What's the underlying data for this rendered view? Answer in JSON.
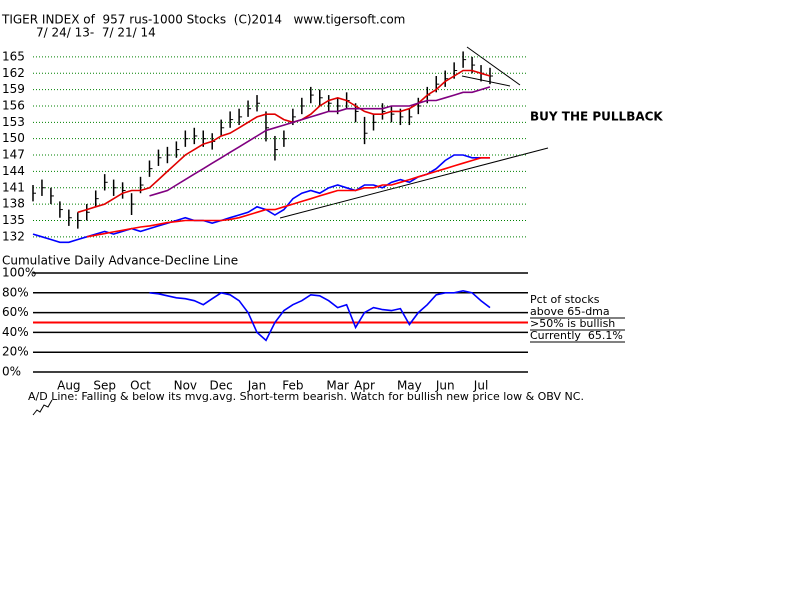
{
  "chart_data": [
    {
      "type": "ohlc",
      "title": "TIGER INDEX of  957 rus-1000 Stocks  (C)2014   www.tigersoft.com",
      "subtitle": "7/ 24/ 13-  7/ 21/ 14",
      "annotation": "BUY THE PULLBACK",
      "ylim": [
        130.5,
        167
      ],
      "yticks": [
        165,
        162,
        159,
        156,
        153,
        150,
        147,
        144,
        141,
        138,
        135,
        132
      ],
      "grid": true,
      "grid_color": "#008000",
      "bar_color": "#000000",
      "close": [
        140,
        141,
        139.5,
        137,
        135.5,
        135,
        136.5,
        139,
        142,
        141,
        140.5,
        138,
        141.5,
        144.5,
        146.5,
        147,
        148,
        150,
        150.5,
        150,
        149.5,
        152,
        153.5,
        154,
        155.5,
        156.5,
        152,
        148,
        150,
        154,
        156,
        158,
        157.5,
        156.5,
        156,
        157,
        155,
        151,
        153,
        155,
        154.5,
        154,
        154,
        156,
        158,
        160,
        161,
        162.5,
        164.5,
        163.5,
        162,
        161.5
      ],
      "high": [
        141.5,
        142.5,
        141,
        138.5,
        137,
        136.5,
        138,
        140.5,
        143.5,
        142.5,
        142,
        140,
        143,
        146,
        148,
        148.5,
        149.5,
        151.5,
        152,
        151.5,
        151,
        153.5,
        155,
        155.5,
        157,
        158,
        155,
        150.5,
        151.5,
        155.5,
        157.5,
        159.5,
        159,
        158,
        157.5,
        158.5,
        156.5,
        154,
        154.5,
        156.5,
        156,
        155.5,
        155.5,
        157.5,
        159.5,
        161.5,
        162.5,
        164,
        166,
        165,
        163.5,
        163
      ],
      "low": [
        138.5,
        139.5,
        138,
        135.5,
        134,
        133.5,
        135,
        137.5,
        140.5,
        139.5,
        139,
        136,
        140,
        143,
        145,
        145.5,
        146.5,
        148.5,
        149,
        148.5,
        148,
        150.5,
        152,
        152.5,
        154,
        155,
        149.5,
        146,
        148.5,
        152.5,
        154.5,
        156.5,
        156,
        155,
        154.5,
        155.5,
        153,
        149,
        151.5,
        153.5,
        153,
        152.5,
        152.5,
        154.5,
        156.5,
        158.5,
        159.5,
        161,
        163,
        162,
        160.5,
        160
      ],
      "series": [
        {
          "color": "#e00000",
          "values": [
            null,
            null,
            null,
            null,
            null,
            136.5,
            137,
            137.5,
            138,
            139,
            140,
            140.5,
            140.5,
            141,
            142.5,
            144,
            145.5,
            147,
            148,
            149,
            149.5,
            150.5,
            151,
            152,
            153,
            154,
            154.5,
            154.5,
            153.5,
            153,
            153.5,
            154.5,
            156,
            157,
            157.5,
            157,
            156,
            155,
            154.5,
            154.5,
            155,
            155,
            155.5,
            156.5,
            158,
            159,
            160.5,
            161.5,
            162.5,
            162.5,
            162,
            161.5
          ]
        },
        {
          "color": "#800080",
          "values": [
            null,
            null,
            null,
            null,
            null,
            null,
            null,
            null,
            null,
            null,
            null,
            null,
            null,
            139.5,
            140,
            140.5,
            141.5,
            142.5,
            143.5,
            144.5,
            145.5,
            146.5,
            147.5,
            148.5,
            149.5,
            150.5,
            151.5,
            152,
            152.5,
            153,
            153.5,
            154,
            154.5,
            155,
            155,
            155.5,
            155.5,
            155.5,
            155.5,
            155.5,
            156,
            156,
            156,
            156.5,
            157,
            157,
            157.5,
            158,
            158.5,
            158.5,
            159,
            159.5
          ]
        },
        {
          "color": "#0000ff",
          "values": [
            132.5,
            132,
            131.5,
            131,
            131,
            131.5,
            132,
            132.5,
            133,
            132.5,
            133,
            133.5,
            133,
            133.5,
            134,
            134.5,
            135,
            135.5,
            135,
            135,
            134.5,
            135,
            135.5,
            136,
            136.5,
            137.5,
            137,
            136,
            137,
            139,
            140,
            140.5,
            140,
            141,
            141.5,
            141,
            140.5,
            141.5,
            141.5,
            141,
            142,
            142.5,
            142,
            143,
            143.5,
            144.5,
            146,
            147,
            147,
            146.5,
            146.5,
            146.5
          ]
        },
        {
          "color": "#ff0000",
          "values": [
            null,
            null,
            null,
            null,
            null,
            null,
            132,
            132.3,
            132.6,
            132.9,
            133.2,
            133.5,
            133.8,
            134,
            134.3,
            134.6,
            134.8,
            135,
            135,
            135,
            135,
            135,
            135.2,
            135.5,
            136,
            136.5,
            137,
            137,
            137.5,
            138,
            138.5,
            139,
            139.5,
            140,
            140.5,
            140.5,
            140.5,
            141,
            141,
            141.5,
            141.5,
            142,
            142.5,
            143,
            143.5,
            144,
            144.5,
            145,
            145.5,
            146,
            146.5,
            146.5
          ]
        }
      ]
    },
    {
      "type": "line",
      "title": "Cumulative Daily Advance-Decline Line",
      "categories": [
        null,
        null,
        null,
        null,
        "Aug",
        null,
        null,
        null,
        "Sep",
        null,
        null,
        null,
        "Oct",
        null,
        null,
        null,
        null,
        "Nov",
        null,
        null,
        null,
        "Dec",
        null,
        null,
        null,
        "Jan",
        null,
        null,
        null,
        "Feb",
        null,
        null,
        null,
        null,
        "Mar",
        null,
        null,
        "Apr",
        null,
        null,
        null,
        null,
        "May",
        null,
        null,
        null,
        "Jun",
        null,
        null,
        null,
        "Jul",
        null
      ],
      "ylim": [
        0,
        100
      ],
      "yticks": [
        {
          "value": 100,
          "label": "100%"
        },
        {
          "value": 80,
          "label": "80%"
        },
        {
          "value": 60,
          "label": "60%"
        },
        {
          "value": 40,
          "label": "40%"
        },
        {
          "value": 20,
          "label": "20%"
        },
        {
          "value": 0,
          "label": "0%"
        }
      ],
      "grid": true,
      "grid_color": "#000000",
      "reference_line": {
        "value": 50,
        "color": "#ff0000"
      },
      "series": [
        {
          "color": "#0000ff",
          "values": [
            null,
            null,
            null,
            null,
            null,
            null,
            null,
            null,
            null,
            null,
            null,
            null,
            null,
            80,
            79,
            77,
            75,
            74,
            72,
            68,
            74,
            80,
            78,
            72,
            60,
            40,
            32,
            50,
            62,
            68,
            72,
            78,
            77,
            72,
            65,
            68,
            45,
            60,
            65,
            63,
            62,
            64,
            48,
            60,
            68,
            78,
            80,
            80,
            82,
            80,
            72,
            65
          ]
        }
      ],
      "annotations": [
        "Pct of stocks",
        "above 65-dma",
        ">50% is bullish",
        "Currently  65.1%"
      ],
      "note": "A/D Line: Falling & below its mvg.avg. Short-term bearish. Watch for bullish new price low & OBV NC."
    }
  ]
}
